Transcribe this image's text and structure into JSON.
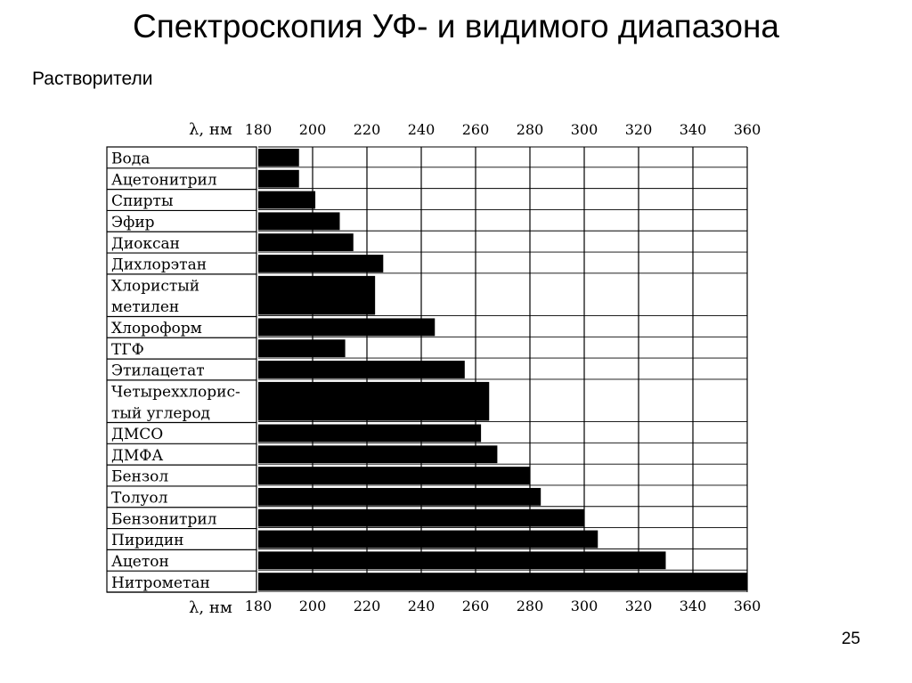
{
  "slide": {
    "title": "Спектроскопия УФ- и видимого диапазона",
    "subtitle": "Растворители",
    "page_number": "25"
  },
  "chart_data": {
    "type": "bar",
    "orientation": "horizontal",
    "title": "",
    "xlabel": "λ, нм",
    "ylabel": "",
    "xlim": [
      180,
      360
    ],
    "xticks": [
      180,
      200,
      220,
      240,
      260,
      280,
      300,
      320,
      340,
      360
    ],
    "grid": true,
    "legend": "none",
    "bar_color": "#000000",
    "categories": [
      "Вода",
      "Ацетонитрил",
      "Спирты",
      "Эфир",
      "Диоксан",
      "Дихлорэтан",
      "Хлористый метилен",
      "Хлороформ",
      "ТГФ",
      "Этилацетат",
      "Четыреххлористый углерод",
      "ДМСО",
      "ДМФА",
      "Бензол",
      "Толуол",
      "Бензонитрил",
      "Пиридин",
      "Ацетон",
      "Нитрометан"
    ],
    "category_label_lines": [
      [
        "Вода"
      ],
      [
        "Ацетонитрил"
      ],
      [
        "Спирты"
      ],
      [
        "Эфир"
      ],
      [
        "Диоксан"
      ],
      [
        "Дихлорэтан"
      ],
      [
        "Хлористый",
        "метилен"
      ],
      [
        "Хлороформ"
      ],
      [
        "ТГФ"
      ],
      [
        "Этилацетат"
      ],
      [
        "Четыреххлорис-",
        "тый углерод"
      ],
      [
        "ДМСО"
      ],
      [
        "ДМФА"
      ],
      [
        "Бензол"
      ],
      [
        "Толуол"
      ],
      [
        "Бензонитрил"
      ],
      [
        "Пиридин"
      ],
      [
        "Ацетон"
      ],
      [
        "Нитрометан"
      ]
    ],
    "values": [
      195,
      195,
      201,
      210,
      215,
      226,
      223,
      245,
      212,
      256,
      265,
      262,
      268,
      280,
      284,
      300,
      305,
      330,
      360
    ]
  }
}
